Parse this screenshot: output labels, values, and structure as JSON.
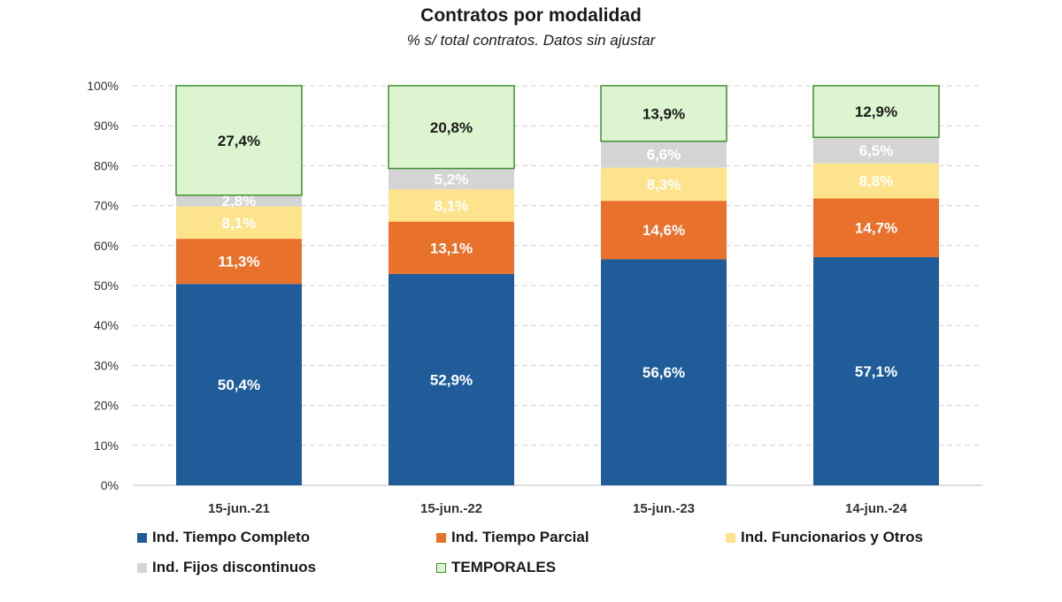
{
  "chart_data": {
    "type": "stacked-bar",
    "title": "Contratos por modalidad",
    "subtitle": "% s/ total contratos. Datos sin ajustar",
    "categories": [
      "15-jun.-21",
      "15-jun.-22",
      "15-jun.-23",
      "14-jun.-24"
    ],
    "ylim": [
      0,
      100
    ],
    "yticks": [
      "0%",
      "10%",
      "20%",
      "30%",
      "40%",
      "50%",
      "60%",
      "70%",
      "80%",
      "90%",
      "100%"
    ],
    "series": [
      {
        "name": "Ind. Tiempo Completo",
        "values": [
          50.4,
          52.9,
          56.6,
          57.1
        ],
        "labels": [
          "50,4%",
          "52,9%",
          "56,6%",
          "57,1%"
        ],
        "color": "#1f5c99",
        "border": "#1f5c99",
        "label_color": "#ffffff"
      },
      {
        "name": "Ind. Tiempo Parcial",
        "values": [
          11.3,
          13.1,
          14.6,
          14.7
        ],
        "labels": [
          "11,3%",
          "13,1%",
          "14,6%",
          "14,7%"
        ],
        "color": "#e8712b",
        "border": "#e8712b",
        "label_color": "#ffffff"
      },
      {
        "name": "Ind. Funcionarios y Otros",
        "values": [
          8.1,
          8.1,
          8.3,
          8.8
        ],
        "labels": [
          "8,1%",
          "8,1%",
          "8,3%",
          "8,8%"
        ],
        "color": "#fde38c",
        "border": "#fde38c",
        "label_color": "#ffffff"
      },
      {
        "name": "Ind. Fijos discontinuos",
        "values": [
          2.8,
          5.2,
          6.6,
          6.5
        ],
        "labels": [
          "2,8%",
          "5,2%",
          "6,6%",
          "6,5%"
        ],
        "color": "#d4d4d4",
        "border": "#d4d4d4",
        "label_color": "#ffffff"
      },
      {
        "name": "TEMPORALES",
        "values": [
          27.4,
          20.8,
          13.9,
          12.9
        ],
        "labels": [
          "27,4%",
          "20,8%",
          "13,9%",
          "12,9%"
        ],
        "color": "#dcf5d0",
        "border": "#3f8f2f",
        "label_color": "#1a1a1a"
      }
    ],
    "legend": "bottom",
    "grid": true
  }
}
